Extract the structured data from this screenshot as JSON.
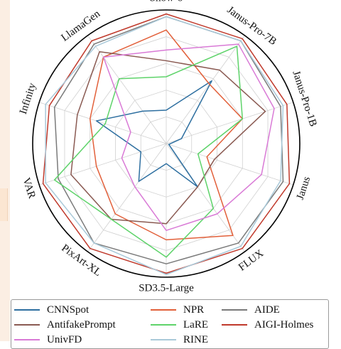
{
  "chart_data": {
    "type": "radar",
    "categories": [
      "Show-o",
      "Janus-Pro-7B",
      "Janus-Pro-1B",
      "Janus",
      "FLUX",
      "SD3.5-Large",
      "PixArt-XL",
      "VAR",
      "Infinity",
      "LlamaGen"
    ],
    "rlim": [
      0,
      100
    ],
    "grid": true,
    "legend_position": "bottom",
    "series": [
      {
        "name": "CNNSpot",
        "color": "#2e6fa0",
        "values": [
          25,
          58,
          12,
          2,
          40,
          15,
          35,
          20,
          55,
          30
        ]
      },
      {
        "name": "NPR",
        "color": "#e2603a",
        "values": [
          85,
          55,
          60,
          32,
          85,
          72,
          65,
          55,
          60,
          80
        ]
      },
      {
        "name": "AIDE",
        "color": "#7a7a7a",
        "values": [
          95,
          95,
          90,
          92,
          92,
          90,
          92,
          85,
          88,
          92
        ]
      },
      {
        "name": "AntifakePrompt",
        "color": "#8a5a52",
        "values": [
          62,
          68,
          78,
          38,
          40,
          60,
          70,
          75,
          70,
          85
        ]
      },
      {
        "name": "LaRE",
        "color": "#5ed36a",
        "values": [
          50,
          90,
          60,
          25,
          60,
          85,
          70,
          88,
          48,
          60
        ]
      },
      {
        "name": "AIGI-Holmes",
        "color": "#c0392b",
        "values": [
          97,
          97,
          95,
          97,
          97,
          97,
          97,
          97,
          92,
          95
        ]
      },
      {
        "name": "UnivFD",
        "color": "#d97ad6",
        "values": [
          70,
          92,
          85,
          75,
          65,
          65,
          40,
          35,
          28,
          80
        ]
      },
      {
        "name": "RINE",
        "color": "#a9c9d9",
        "values": [
          95,
          95,
          92,
          90,
          95,
          98,
          92,
          95,
          95,
          90
        ]
      }
    ]
  },
  "legend": {
    "items": [
      {
        "label": "CNNSpot",
        "color": "#2e6fa0"
      },
      {
        "label": "NPR",
        "color": "#e2603a"
      },
      {
        "label": "AIDE",
        "color": "#7a7a7a"
      },
      {
        "label": "AntifakePrompt",
        "color": "#8a5a52"
      },
      {
        "label": "LaRE",
        "color": "#5ed36a"
      },
      {
        "label": "AIGI-Holmes",
        "color": "#c0392b"
      },
      {
        "label": "UnivFD",
        "color": "#d97ad6"
      },
      {
        "label": "RINE",
        "color": "#a9c9d9"
      }
    ]
  }
}
